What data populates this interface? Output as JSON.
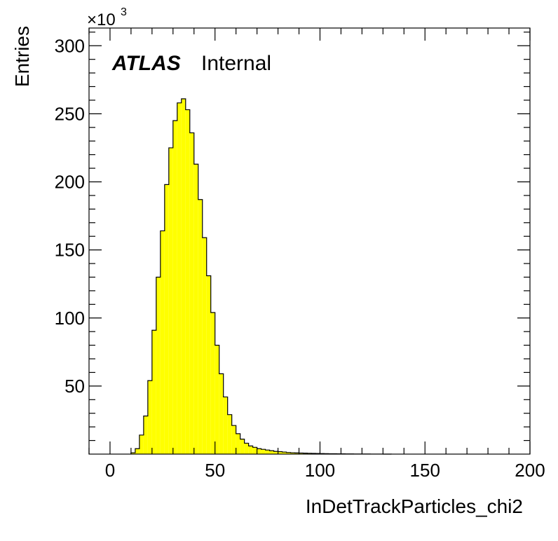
{
  "chart_data": {
    "type": "bar",
    "xlabel": "InDetTrackParticles_chi2",
    "ylabel": "Entries",
    "y_multiplier_label": "×10",
    "y_multiplier_exp": "3",
    "title_bold": "ATLAS",
    "title_sub": "Internal",
    "xlim": [
      -10,
      200
    ],
    "ylim": [
      0,
      313
    ],
    "x_ticks": [
      0,
      50,
      100,
      150,
      200
    ],
    "y_ticks": [
      50,
      100,
      150,
      200,
      250,
      300
    ],
    "bin_width": 2,
    "bin_edges_start": 10,
    "values": [
      1,
      4,
      14,
      28,
      54,
      91,
      130,
      164,
      198,
      225,
      245,
      258,
      261,
      253,
      236,
      213,
      187,
      159,
      131,
      104,
      80,
      59,
      42,
      29,
      21,
      15,
      11,
      8,
      6,
      5,
      4,
      3.5,
      3,
      2.5,
      2,
      1.8,
      1.5,
      1.2,
      1,
      0.9,
      0.8,
      0.7,
      0.6,
      0.5,
      0.45,
      0.4,
      0.35,
      0.3,
      0.25,
      0.2,
      0.18,
      0.15,
      0.12,
      0.1,
      0.08,
      0.06,
      0.05,
      0.04,
      0.03,
      0.02,
      0.01,
      0.01
    ],
    "fill_color": "#ffff00",
    "line_color": "#000000",
    "grid": false
  }
}
